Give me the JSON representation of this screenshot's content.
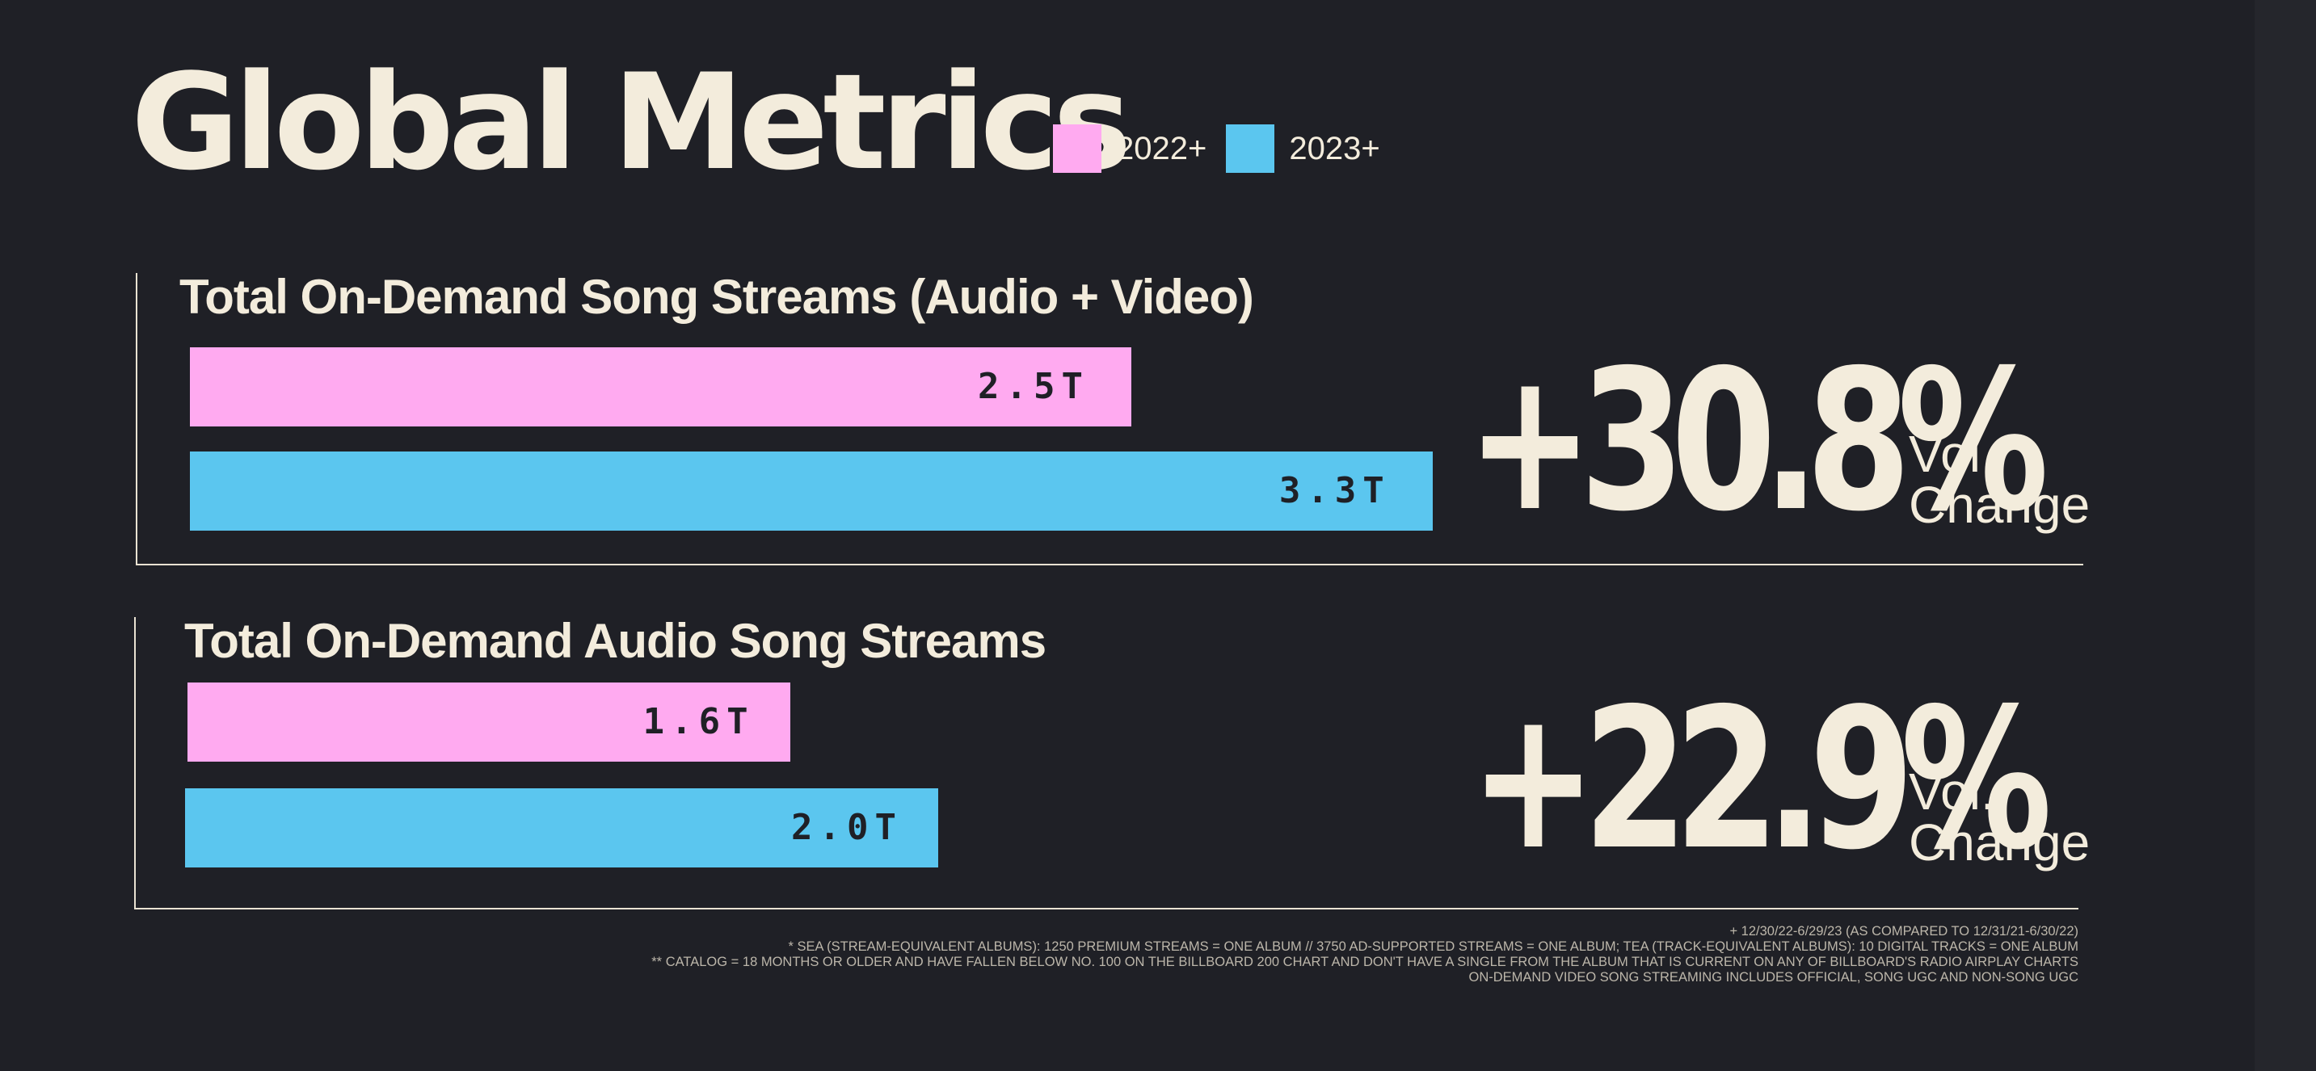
{
  "header": {
    "title": "Global Metrics"
  },
  "legend": [
    {
      "label": "2022+",
      "color": "#ffaaf0"
    },
    {
      "label": "2023+",
      "color": "#5bc6ef"
    }
  ],
  "chart_data": [
    {
      "type": "bar",
      "orientation": "horizontal",
      "title": "Total On-Demand Song Streams (Audio + Video)",
      "unit": "T",
      "series": [
        {
          "name": "2022+",
          "value": 2.5,
          "label": "2.5T"
        },
        {
          "name": "2023+",
          "value": 3.3,
          "label": "3.3T"
        }
      ],
      "change": {
        "value": "+30.8%",
        "label_line1": "Vol.",
        "label_line2": "Change"
      }
    },
    {
      "type": "bar",
      "orientation": "horizontal",
      "title": "Total On-Demand Audio Song Streams",
      "unit": "T",
      "series": [
        {
          "name": "2022+",
          "value": 1.6,
          "label": "1.6T"
        },
        {
          "name": "2023+",
          "value": 2.0,
          "label": "2.0T"
        }
      ],
      "change": {
        "value": "+22.9%",
        "label_line1": "Vol.",
        "label_line2": "Change"
      }
    }
  ],
  "footnotes": [
    "+ 12/30/22-6/29/23 (AS COMPARED TO 12/31/21-6/30/22)",
    "* SEA (STREAM-EQUIVALENT ALBUMS): 1250 PREMIUM STREAMS = ONE ALBUM // 3750 AD-SUPPORTED STREAMS = ONE ALBUM; TEA (TRACK-EQUIVALENT ALBUMS): 10 DIGITAL TRACKS = ONE ALBUM",
    "** CATALOG = 18 MONTHS OR OLDER AND HAVE FALLEN BELOW NO. 100 ON THE BILLBOARD 200 CHART AND DON'T HAVE A SINGLE FROM THE ALBUM THAT IS CURRENT ON ANY OF BILLBOARD'S RADIO AIRPLAY CHARTS",
    "ON-DEMAND VIDEO SONG STREAMING INCLUDES OFFICIAL, SONG UGC AND NON-SONG UGC"
  ]
}
